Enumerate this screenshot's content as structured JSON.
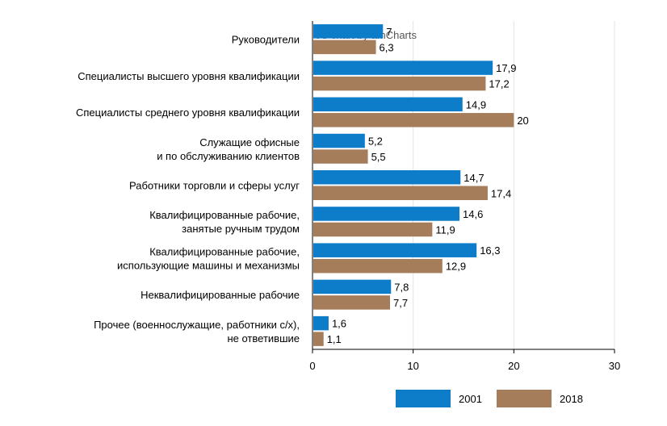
{
  "watermark": "JS chart by amCharts",
  "chart_data": {
    "type": "bar",
    "orientation": "horizontal",
    "categories": [
      "Руководители",
      "Специалисты высшего уровня квалификации",
      "Специалисты среднего уровня квалификации",
      "Служащие офисные\nи по обслуживанию клиентов",
      "Работники торговли и сферы услуг",
      "Квалифицированные рабочие,\nзанятые ручным трудом",
      "Квалифицированные рабочие,\nиспользующие машины и механизмы",
      "Неквалифицированные рабочие",
      "Прочее (военнослужащие, работники с/х),\nне ответившие"
    ],
    "series": [
      {
        "name": "2001",
        "color": "#0d7cc9",
        "values": [
          7,
          17.9,
          14.9,
          5.2,
          14.7,
          14.6,
          16.3,
          7.8,
          1.6
        ],
        "labels": [
          "7",
          "17,9",
          "14,9",
          "5,2",
          "14,7",
          "14,6",
          "16,3",
          "7,8",
          "1,6"
        ]
      },
      {
        "name": "2018",
        "color": "#a57d5a",
        "values": [
          6.3,
          17.2,
          20,
          5.5,
          17.4,
          11.9,
          12.9,
          7.7,
          1.1
        ],
        "labels": [
          "6,3",
          "17,2",
          "20",
          "5,5",
          "17,4",
          "11,9",
          "12,9",
          "7,7",
          "1,1"
        ]
      }
    ],
    "xlim": [
      0,
      30
    ],
    "xticks": [
      0,
      10,
      20,
      30
    ],
    "grid": true,
    "legend_position": "bottom",
    "title": "",
    "xlabel": "",
    "ylabel": ""
  }
}
